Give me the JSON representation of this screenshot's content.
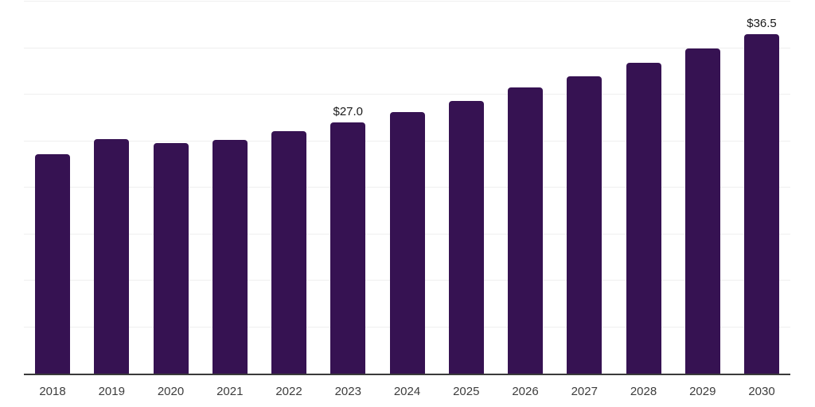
{
  "chart_data": {
    "type": "bar",
    "title": "",
    "xlabel": "",
    "ylabel": "",
    "categories": [
      "2018",
      "2019",
      "2020",
      "2021",
      "2022",
      "2023",
      "2024",
      "2025",
      "2026",
      "2027",
      "2028",
      "2029",
      "2030"
    ],
    "values": [
      23.6,
      25.2,
      24.8,
      25.1,
      26.1,
      27.0,
      28.1,
      29.3,
      30.8,
      32.0,
      33.4,
      35.0,
      36.5
    ],
    "data_labels": [
      "",
      "",
      "",
      "",
      "",
      "$27.0",
      "",
      "",
      "",
      "",
      "",
      "",
      "$36.5"
    ],
    "ylim": [
      0,
      40
    ],
    "gridline_step": 5,
    "grid": "horizontal",
    "legend_position": "none",
    "colors": {
      "bar": "#361252",
      "gridline": "#efefef",
      "axis_line": "#3a3a3a",
      "tick_label": "#3d3d3d",
      "data_label": "#1a1a1a",
      "background": "#ffffff"
    }
  }
}
